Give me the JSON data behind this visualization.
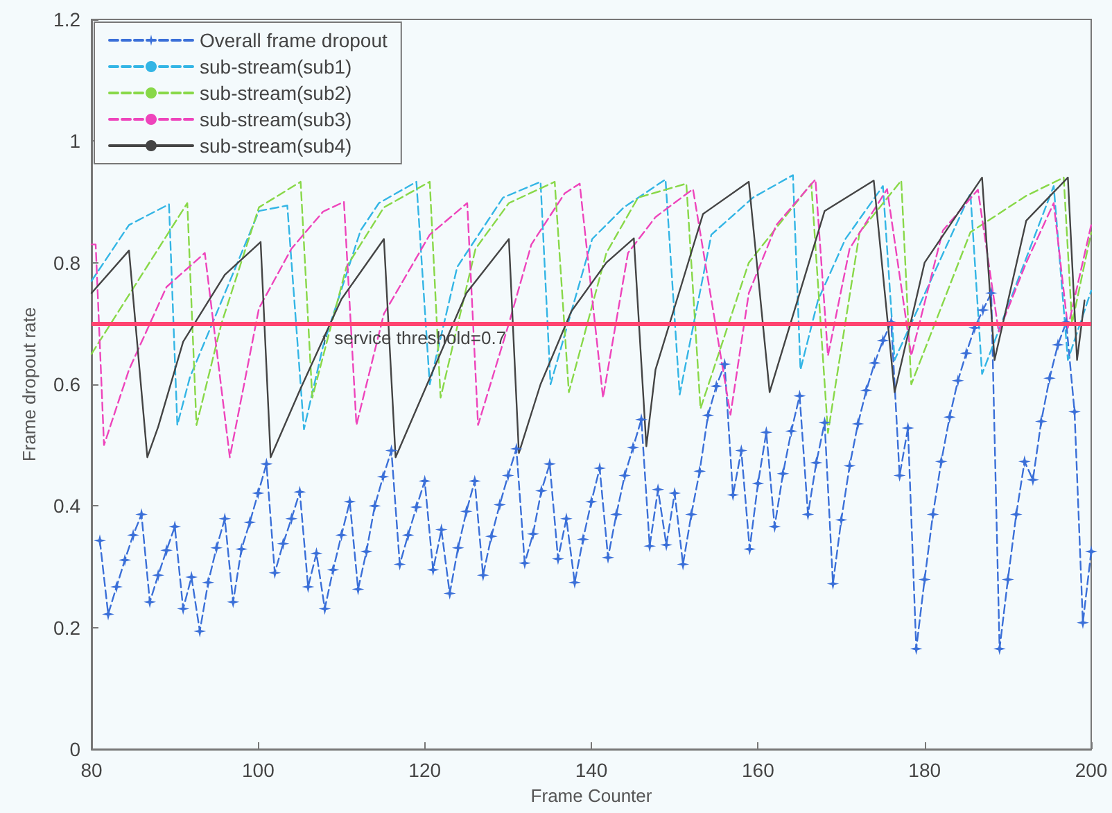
{
  "chart_data": {
    "type": "line",
    "xlabel": "Frame Counter",
    "ylabel": "Frame dropout rate",
    "xlim": [
      80,
      200
    ],
    "xticks": [
      80,
      100,
      120,
      140,
      160,
      180,
      200
    ],
    "ylim": [
      0,
      1.2
    ],
    "yticks": [
      0,
      0.2,
      0.4,
      0.6,
      0.8,
      1,
      1.2
    ],
    "grid": false,
    "legend": "top left",
    "ref_lines": [
      {
        "axis": "y",
        "value": 0.7,
        "label": "↑ service threshold=0.7",
        "color": "#ff4470"
      }
    ],
    "series": [
      {
        "name": "Overall frame dropout",
        "color": "#3a6fd8",
        "marker": "star",
        "line_style": "dashed",
        "x": [
          81,
          82,
          83,
          84,
          85,
          86,
          87,
          88,
          89,
          90,
          91,
          92,
          93,
          94,
          95,
          96,
          97,
          98,
          99,
          100,
          101,
          102,
          103,
          104,
          105,
          106,
          107,
          108,
          109,
          110,
          111,
          112,
          113,
          114,
          115,
          116,
          117,
          118,
          119,
          120,
          121,
          122,
          123,
          124,
          125,
          126,
          127,
          128,
          129,
          130,
          131,
          132,
          133,
          134,
          135,
          136,
          137,
          138,
          139,
          140,
          141,
          142,
          143,
          144,
          145,
          146,
          147,
          148,
          149,
          150,
          151,
          152,
          153,
          154,
          155,
          156,
          157,
          158,
          159,
          160,
          161,
          162,
          163,
          164,
          165,
          166,
          167,
          168,
          169,
          170,
          171,
          172,
          173,
          174,
          175,
          176,
          177,
          178,
          179,
          180,
          181,
          182,
          183,
          184,
          185,
          186,
          187,
          188,
          189,
          190,
          191,
          192,
          193,
          194,
          195,
          196,
          197,
          198,
          199,
          200
        ],
        "values": [
          0.343,
          0.222,
          0.267,
          0.311,
          0.352,
          0.386,
          0.242,
          0.286,
          0.327,
          0.366,
          0.231,
          0.283,
          0.194,
          0.274,
          0.331,
          0.379,
          0.242,
          0.329,
          0.373,
          0.421,
          0.469,
          0.29,
          0.338,
          0.379,
          0.423,
          0.267,
          0.322,
          0.231,
          0.295,
          0.352,
          0.407,
          0.263,
          0.325,
          0.4,
          0.448,
          0.491,
          0.304,
          0.352,
          0.398,
          0.441,
          0.295,
          0.361,
          0.256,
          0.331,
          0.391,
          0.441,
          0.286,
          0.35,
          0.402,
          0.45,
          0.494,
          0.306,
          0.354,
          0.425,
          0.469,
          0.313,
          0.379,
          0.274,
          0.345,
          0.407,
          0.462,
          0.315,
          0.386,
          0.45,
          0.496,
          0.542,
          0.334,
          0.427,
          0.336,
          0.421,
          0.304,
          0.386,
          0.457,
          0.549,
          0.597,
          0.633,
          0.418,
          0.491,
          0.329,
          0.437,
          0.521,
          0.366,
          0.453,
          0.523,
          0.581,
          0.386,
          0.471,
          0.537,
          0.272,
          0.377,
          0.466,
          0.535,
          0.59,
          0.635,
          0.672,
          0.702,
          0.45,
          0.528,
          0.165,
          0.279,
          0.386,
          0.473,
          0.546,
          0.606,
          0.651,
          0.693,
          0.722,
          0.75,
          0.165,
          0.279,
          0.386,
          0.473,
          0.443,
          0.539,
          0.61,
          0.665,
          0.702,
          0.555,
          0.208,
          0.325
        ]
      },
      {
        "name": "sub-stream(sub1)",
        "color": "#33b5e5",
        "marker": "none",
        "line_style": "dashed",
        "x": [
          80,
          84.5,
          89.3,
          90.3,
          91.8,
          100.1,
          103.5,
          105.5,
          107.8,
          112.3,
          114.5,
          119,
          120.6,
          123.9,
          129.4,
          133.9,
          135.1,
          140.1,
          143.9,
          148.9,
          150.6,
          154.4,
          159.4,
          164.2,
          165.1,
          167.2,
          170.5,
          175,
          176.4,
          185.5,
          186.9,
          195.5,
          197.2,
          200
        ],
        "values": [
          0.77,
          0.862,
          0.896,
          0.533,
          0.611,
          0.885,
          0.894,
          0.526,
          0.663,
          0.853,
          0.898,
          0.933,
          0.6,
          0.793,
          0.907,
          0.933,
          0.6,
          0.839,
          0.891,
          0.937,
          0.583,
          0.846,
          0.907,
          0.944,
          0.624,
          0.738,
          0.839,
          0.926,
          0.64,
          0.914,
          0.617,
          0.926,
          0.64,
          0.754
        ]
      },
      {
        "name": "sub-stream(sub2)",
        "color": "#88d848",
        "marker": "none",
        "line_style": "dashed",
        "x": [
          80,
          91.5,
          92.6,
          95.6,
          100.1,
          105.1,
          106.5,
          110.6,
          115.1,
          120.6,
          121.9,
          126.1,
          130.1,
          135.6,
          137.3,
          141.8,
          145.6,
          151.4,
          153.1,
          158.9,
          166.4,
          168.4,
          172.2,
          177.2,
          178.4,
          185.5,
          192.2,
          196.7,
          197.7,
          200
        ],
        "values": [
          0.65,
          0.898,
          0.533,
          0.7,
          0.891,
          0.933,
          0.578,
          0.793,
          0.891,
          0.933,
          0.578,
          0.823,
          0.898,
          0.933,
          0.587,
          0.816,
          0.907,
          0.93,
          0.56,
          0.8,
          0.93,
          0.52,
          0.85,
          0.935,
          0.6,
          0.85,
          0.91,
          0.94,
          0.7,
          0.85
        ]
      },
      {
        "name": "sub-stream(sub3)",
        "color": "#ee44bb",
        "marker": "none",
        "line_style": "dashed",
        "x": [
          80,
          80.5,
          81.5,
          84.5,
          89,
          93.6,
          96.6,
          100.1,
          104,
          107.8,
          110.3,
          111.8,
          115.1,
          120.6,
          125.1,
          126.4,
          130.1,
          132.8,
          136.8,
          138.6,
          141.4,
          144.4,
          147.7,
          152.2,
          156.7,
          158.9,
          162.2,
          166.9,
          168.4,
          171,
          175.5,
          178.4,
          182.2,
          186.4,
          188.9,
          192.2,
          195.5,
          197.2,
          200
        ],
        "values": [
          0.83,
          0.83,
          0.5,
          0.624,
          0.76,
          0.816,
          0.48,
          0.725,
          0.823,
          0.884,
          0.9,
          0.533,
          0.716,
          0.846,
          0.898,
          0.533,
          0.7,
          0.83,
          0.914,
          0.93,
          0.578,
          0.816,
          0.875,
          0.921,
          0.55,
          0.75,
          0.862,
          0.937,
          0.647,
          0.823,
          0.921,
          0.647,
          0.853,
          0.92,
          0.686,
          0.8,
          0.898,
          0.693,
          0.862
        ]
      },
      {
        "name": "sub-stream(sub4)",
        "color": "#444444",
        "marker": "none",
        "line_style": "solid",
        "x": [
          80,
          84.5,
          86.7,
          88,
          91,
          96,
          100.3,
          101.5,
          105,
          110,
          115.1,
          116.5,
          120.1,
          125,
          130.1,
          131.3,
          133.9,
          137.6,
          141.8,
          145.1,
          146.6,
          147.7,
          150.6,
          153.4,
          158.9,
          161.4,
          168,
          173.9,
          176.4,
          180,
          186.9,
          188.4,
          192.2,
          197.2,
          198.3,
          199.2
        ],
        "values": [
          0.75,
          0.82,
          0.48,
          0.53,
          0.67,
          0.78,
          0.834,
          0.48,
          0.59,
          0.74,
          0.839,
          0.48,
          0.594,
          0.75,
          0.839,
          0.487,
          0.6,
          0.72,
          0.8,
          0.84,
          0.498,
          0.624,
          0.754,
          0.88,
          0.933,
          0.587,
          0.885,
          0.935,
          0.587,
          0.8,
          0.94,
          0.64,
          0.869,
          0.94,
          0.64,
          0.738
        ]
      }
    ]
  }
}
